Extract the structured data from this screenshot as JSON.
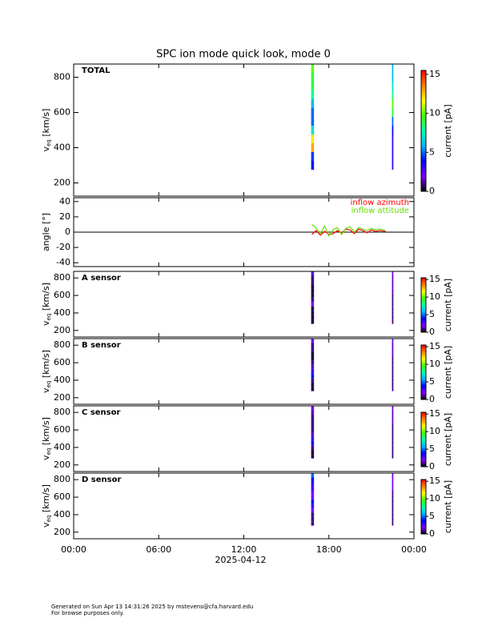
{
  "title": "SPC ion mode quick look, mode 0",
  "footer": [
    "Generated on Sun Apr 13 14:31:26 2025 by mstevens@cfa.harvard.edu",
    "For browse purposes only."
  ],
  "colormap": [
    "#000000",
    "#7f00ff",
    "#0000ff",
    "#00b4ff",
    "#00ffb0",
    "#40ff00",
    "#ffff00",
    "#ff8000",
    "#ff0000"
  ],
  "chart_data": [
    {
      "type": "heatmap",
      "label": "TOTAL",
      "ylabel": {
        "main": "v",
        "sub": "eq",
        "unit": " [km/s]"
      },
      "xlim": [
        0,
        24
      ],
      "xticks": [
        0,
        6,
        12,
        18,
        24
      ],
      "ylim": [
        125,
        875
      ],
      "yticks": [
        200,
        400,
        600,
        800
      ],
      "ybins": [
        275,
        325,
        375,
        425,
        475,
        525,
        575,
        625,
        675,
        725,
        775,
        825,
        875
      ],
      "x": [
        [
          16.75,
          16.95
        ],
        [
          22.45,
          22.55
        ]
      ],
      "values": [
        [
          4,
          4.5,
          13,
          12,
          7,
          5,
          5,
          6,
          8,
          9,
          9,
          10
        ],
        [
          3,
          3,
          3,
          3,
          4,
          5,
          9,
          10,
          8,
          7,
          6,
          6
        ]
      ],
      "clim": [
        0,
        15.5
      ],
      "cticks": [
        0,
        5,
        10,
        15
      ],
      "clabel": "current [pA]"
    },
    {
      "type": "line",
      "ylabel": "angle [°]",
      "xlim": [
        0,
        24
      ],
      "xticks": [
        0,
        6,
        12,
        18,
        24
      ],
      "ylim": [
        -45,
        45
      ],
      "yticks": [
        -40,
        -20,
        0,
        20,
        40
      ],
      "x": [
        16.8,
        17.1,
        17.4,
        17.7,
        18.0,
        18.3,
        18.6,
        18.9,
        19.2,
        19.5,
        19.8,
        20.1,
        20.4,
        20.7,
        21.0,
        21.3,
        21.6,
        22.0
      ],
      "series": [
        {
          "name": "inflow azimuth",
          "color": "#ff0000",
          "values": [
            -3,
            2,
            -4,
            1,
            -3,
            -2,
            2,
            -1,
            4,
            3,
            -2,
            4,
            2,
            -1,
            3,
            1,
            2,
            1
          ]
        },
        {
          "name": "inflow attitude",
          "color": "#66dd00",
          "values": [
            10,
            5,
            -2,
            8,
            -5,
            3,
            6,
            -3,
            5,
            7,
            0,
            6,
            4,
            2,
            5,
            3,
            4,
            2
          ]
        }
      ]
    },
    {
      "type": "heatmap",
      "label": "A sensor",
      "ylabel": {
        "main": "v",
        "sub": "eq",
        "unit": " [km/s]"
      },
      "xlim": [
        0,
        24
      ],
      "xticks": [
        0,
        6,
        12,
        18,
        24
      ],
      "ylim": [
        125,
        875
      ],
      "yticks": [
        200,
        400,
        600,
        800
      ],
      "ybins": [
        275,
        325,
        375,
        425,
        475,
        525,
        575,
        625,
        675,
        725,
        775,
        825,
        875
      ],
      "x": [
        [
          16.75,
          16.95
        ],
        [
          22.45,
          22.55
        ]
      ],
      "values": [
        [
          0.5,
          0.5,
          0.5,
          0.5,
          2,
          1,
          0.5,
          0.5,
          0.5,
          1,
          1,
          2.5
        ],
        [
          1,
          1,
          1,
          1,
          1,
          1,
          1,
          1.5,
          1.5,
          1.5,
          1.5,
          2
        ]
      ],
      "clim": [
        0,
        15.5
      ],
      "cticks": [
        0,
        5,
        10,
        15
      ],
      "clabel": "current [pA]"
    },
    {
      "type": "heatmap",
      "label": "B sensor",
      "ylabel": {
        "main": "v",
        "sub": "eq",
        "unit": " [km/s]"
      },
      "xlim": [
        0,
        24
      ],
      "xticks": [
        0,
        6,
        12,
        18,
        24
      ],
      "ylim": [
        125,
        875
      ],
      "yticks": [
        200,
        400,
        600,
        800
      ],
      "ybins": [
        275,
        325,
        375,
        425,
        475,
        525,
        575,
        625,
        675,
        725,
        775,
        825,
        875
      ],
      "x": [
        [
          16.75,
          16.95
        ],
        [
          22.45,
          22.55
        ]
      ],
      "values": [
        [
          0.5,
          0.5,
          1,
          4,
          3,
          1.5,
          1,
          0.5,
          0.5,
          1,
          1,
          2
        ],
        [
          1,
          1,
          1,
          1,
          1,
          1,
          1,
          1,
          1.5,
          1.5,
          1.5,
          2
        ]
      ],
      "clim": [
        0,
        15.5
      ],
      "cticks": [
        0,
        5,
        10,
        15
      ],
      "clabel": "current [pA]"
    },
    {
      "type": "heatmap",
      "label": "C sensor",
      "ylabel": {
        "main": "v",
        "sub": "eq",
        "unit": " [km/s]"
      },
      "xlim": [
        0,
        24
      ],
      "xticks": [
        0,
        6,
        12,
        18,
        24
      ],
      "ylim": [
        125,
        875
      ],
      "yticks": [
        200,
        400,
        600,
        800
      ],
      "ybins": [
        275,
        325,
        375,
        425,
        475,
        525,
        575,
        625,
        675,
        725,
        775,
        825,
        875
      ],
      "x": [
        [
          16.75,
          16.95
        ],
        [
          22.45,
          22.55
        ]
      ],
      "values": [
        [
          0.5,
          0.5,
          1,
          4,
          3,
          1.5,
          1,
          1,
          1,
          1,
          1.5,
          2
        ],
        [
          1,
          1,
          1,
          1,
          1,
          1,
          1,
          1,
          1.5,
          1.5,
          1.5,
          2
        ]
      ],
      "clim": [
        0,
        15.5
      ],
      "cticks": [
        0,
        5,
        10,
        15
      ],
      "clabel": "current [pA]"
    },
    {
      "type": "heatmap",
      "label": "D sensor",
      "ylabel": {
        "main": "v",
        "sub": "eq",
        "unit": " [km/s]"
      },
      "xlim": [
        0,
        24
      ],
      "xticks": [
        {
          "value": 0,
          "label": "00:00"
        },
        {
          "value": 6,
          "label": "06:00"
        },
        {
          "value": 12,
          "label": "12:00"
        },
        {
          "value": 18,
          "label": "18:00"
        },
        {
          "value": 24,
          "label": "00:00"
        }
      ],
      "xlabel": "2025-04-12",
      "ylim": [
        125,
        875
      ],
      "yticks": [
        200,
        400,
        600,
        800
      ],
      "ybins": [
        275,
        325,
        375,
        425,
        475,
        525,
        575,
        625,
        675,
        725,
        775,
        825,
        875
      ],
      "x": [
        [
          16.75,
          16.95
        ],
        [
          22.45,
          22.55
        ]
      ],
      "values": [
        [
          1,
          1,
          1,
          2,
          3,
          4,
          2,
          2,
          3,
          3,
          4,
          5
        ],
        [
          1,
          1,
          1,
          1,
          1,
          1,
          1,
          1,
          2,
          2,
          2,
          2
        ]
      ],
      "clim": [
        0,
        15.5
      ],
      "cticks": [
        0,
        5,
        10,
        15
      ],
      "clabel": "current [pA]"
    }
  ]
}
